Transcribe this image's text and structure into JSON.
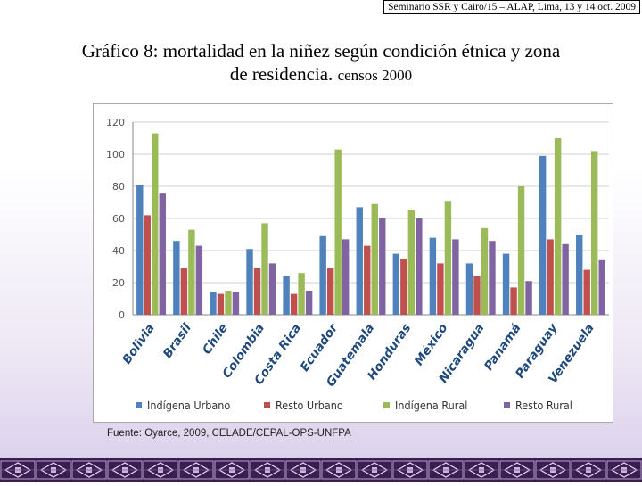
{
  "header": {
    "text": "Seminario SSR y Cairo/15 – ALAP, Lima, 13 y 14 oct. 2009"
  },
  "title": {
    "line1": "Gráfico 8: mortalidad en la niñez según condición étnica y zona",
    "line2_main": "de residencia.",
    "line2_small": "censos 2000"
  },
  "source": "Fuente: Oyarce, 2009, CELADE/CEPAL-OPS-UNFPA",
  "colors": {
    "Indígena Urbano": "#4f81bd",
    "Resto Urbano": "#c0504d",
    "Indígena Rural": "#9bbb59",
    "Resto Rural": "#8064a2",
    "border": "#3a1e52"
  },
  "chart_data": {
    "type": "bar",
    "title": "",
    "xlabel": "",
    "ylabel": "",
    "ylim": [
      0,
      120
    ],
    "yticks": [
      0,
      20,
      40,
      60,
      80,
      100,
      120
    ],
    "grid": true,
    "legend": "bottom",
    "categories": [
      "Bolivia",
      "Brasil",
      "Chile",
      "Colombia",
      "Costa Rica",
      "Ecuador",
      "Guatemala",
      "Honduras",
      "México",
      "Nicaragua",
      "Panamá",
      "Paraguay",
      "Venezuela"
    ],
    "series": [
      {
        "name": "Indígena Urbano",
        "values": [
          81,
          46,
          14,
          41,
          24,
          49,
          67,
          38,
          48,
          32,
          38,
          99,
          50
        ]
      },
      {
        "name": "Resto Urbano",
        "values": [
          62,
          29,
          13,
          29,
          13,
          29,
          43,
          35,
          32,
          24,
          17,
          47,
          28
        ]
      },
      {
        "name": "Indígena Rural",
        "values": [
          113,
          53,
          15,
          57,
          26,
          103,
          69,
          65,
          71,
          54,
          80,
          110,
          102
        ]
      },
      {
        "name": "Resto Rural",
        "values": [
          76,
          43,
          14,
          32,
          15,
          47,
          60,
          60,
          47,
          46,
          21,
          44,
          34
        ]
      }
    ]
  }
}
